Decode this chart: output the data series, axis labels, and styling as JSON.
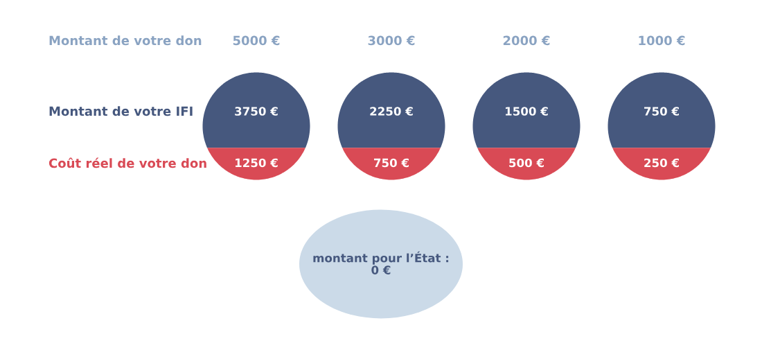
{
  "chart_data": {
    "type": "other",
    "xlabel": "Montant de votre don",
    "categories": [
      "5000 €",
      "3000 €",
      "2000 €",
      "1000 €"
    ],
    "series": [
      {
        "name": "Montant de votre IFI",
        "color": "#46587e",
        "values": [
          3750,
          2250,
          1500,
          750
        ],
        "value_labels": [
          "3750 €",
          "2250 €",
          "1500 €",
          "750 €"
        ]
      },
      {
        "name": "Coût réel de votre don",
        "color": "#d94a55",
        "values": [
          1250,
          750,
          500,
          250
        ],
        "value_labels": [
          "1250 €",
          "750 €",
          "500 €",
          "250 €"
        ]
      }
    ],
    "annotations": [
      "montant pour l’État :\n0 €"
    ]
  }
}
